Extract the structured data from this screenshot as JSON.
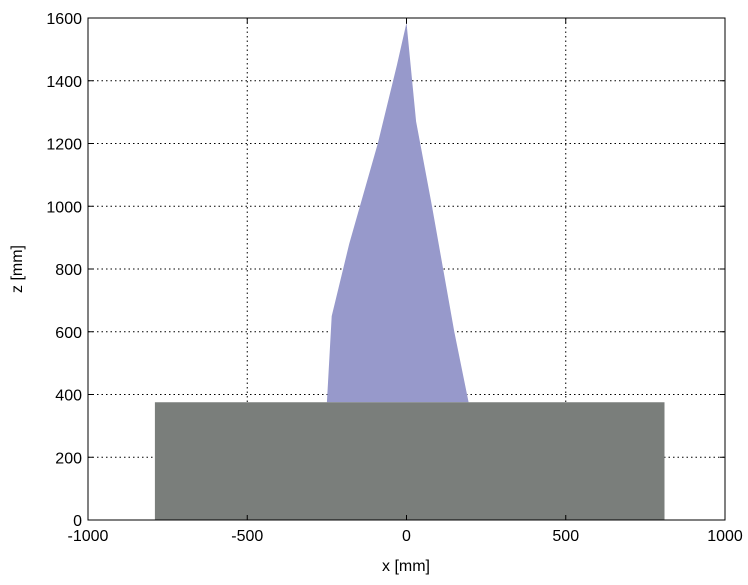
{
  "chart_data": {
    "type": "area",
    "xlabel": "x [mm]",
    "ylabel": "z [mm]",
    "xlim": [
      -1000,
      1000
    ],
    "ylim": [
      0,
      1600
    ],
    "xticks": [
      -1000,
      -500,
      0,
      500,
      1000
    ],
    "yticks": [
      0,
      200,
      400,
      600,
      800,
      1000,
      1200,
      1400,
      1600
    ],
    "xtick_labels": [
      "-1000",
      "-500",
      "0",
      "500",
      "1000"
    ],
    "ytick_labels": [
      "0",
      "200",
      "400",
      "600",
      "800",
      "1000",
      "1200",
      "1400",
      "1600"
    ],
    "grid": true,
    "series": [
      {
        "shape": "polygon",
        "color": "#9799cb",
        "points": [
          {
            "x": -250,
            "y": 375
          },
          {
            "x": -235,
            "y": 650
          },
          {
            "x": -180,
            "y": 880
          },
          {
            "x": -90,
            "y": 1200
          },
          {
            "x": -30,
            "y": 1450
          },
          {
            "x": 0,
            "y": 1585
          },
          {
            "x": 30,
            "y": 1270
          },
          {
            "x": 80,
            "y": 1000
          },
          {
            "x": 150,
            "y": 600
          },
          {
            "x": 195,
            "y": 375
          }
        ]
      },
      {
        "shape": "rectangle",
        "color": "#7a7e7b",
        "points": [
          {
            "x": -790,
            "y": 0
          },
          {
            "x": -790,
            "y": 375
          },
          {
            "x": 810,
            "y": 375
          },
          {
            "x": 810,
            "y": 0
          }
        ]
      }
    ]
  }
}
